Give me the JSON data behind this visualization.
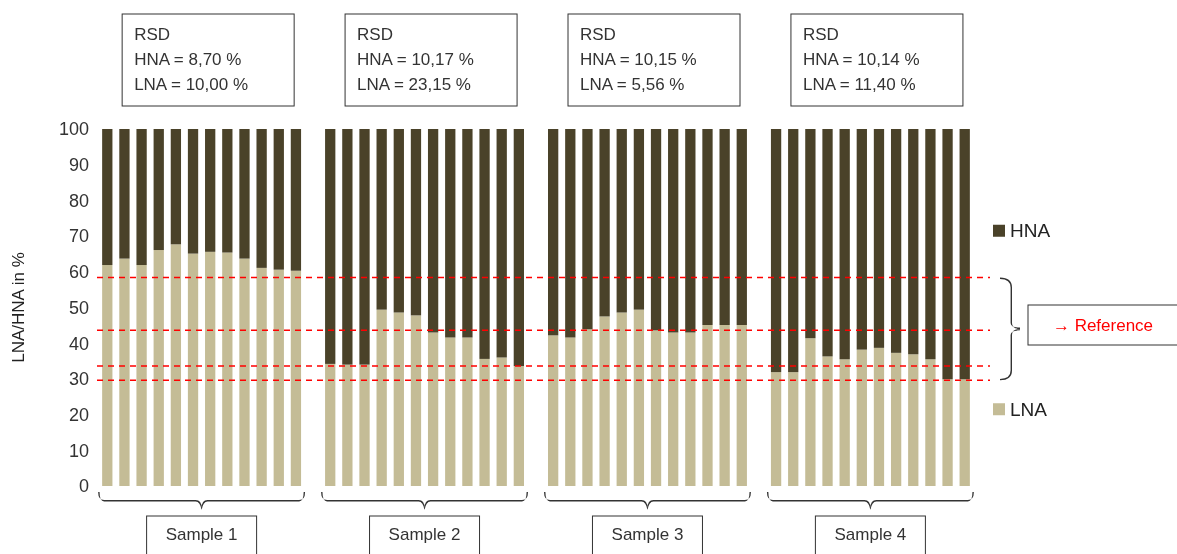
{
  "chart_data": {
    "type": "bar",
    "stacked": true,
    "ylabel": "LNA/HNA in %",
    "ylim": [
      0,
      100
    ],
    "yticks": [
      0,
      10,
      20,
      30,
      40,
      50,
      60,
      70,
      80,
      90,
      100
    ],
    "tick_labels": "y",
    "legend": "right",
    "grid": false,
    "categories": [
      null,
      null,
      null,
      null,
      null,
      null,
      null,
      null,
      null,
      null,
      null,
      null,
      null,
      null,
      null,
      null,
      null,
      null,
      null,
      null,
      null,
      null,
      null,
      null,
      null,
      null,
      null,
      null,
      null,
      null,
      null,
      null,
      null,
      null,
      null,
      null,
      null,
      null,
      null,
      null,
      null,
      null,
      null,
      null,
      null,
      null,
      null,
      null
    ],
    "series": [
      {
        "name": "LNA",
        "color": "#c4bc96",
        "values": [
          61.9,
          63.7,
          61.9,
          66.1,
          67.7,
          65.1,
          65.6,
          65.4,
          63.7,
          61.1,
          60.6,
          60.3,
          34.2,
          34.0,
          34.0,
          49.4,
          48.6,
          47.8,
          43.0,
          41.6,
          41.6,
          35.6,
          36.0,
          33.6,
          42.2,
          41.6,
          43.9,
          47.5,
          48.6,
          49.4,
          43.6,
          43.0,
          43.0,
          45.1,
          45.1,
          45.1,
          31.9,
          31.9,
          41.4,
          36.3,
          35.5,
          38.2,
          38.7,
          37.3,
          36.9,
          35.5,
          29.9,
          29.9
        ]
      },
      {
        "name": "HNA",
        "color": "#4a4229",
        "values": [
          38.1,
          36.3,
          38.1,
          33.9,
          32.3,
          34.9,
          34.4,
          34.6,
          36.3,
          38.9,
          39.4,
          39.7,
          65.8,
          66.0,
          66.0,
          50.6,
          51.4,
          52.2,
          57.0,
          58.4,
          58.4,
          64.4,
          64.0,
          66.4,
          57.8,
          58.4,
          56.1,
          52.5,
          51.4,
          50.6,
          56.4,
          57.0,
          57.0,
          54.9,
          54.9,
          54.9,
          68.1,
          68.1,
          58.6,
          63.7,
          64.5,
          61.8,
          61.3,
          62.7,
          63.1,
          64.5,
          70.1,
          70.1
        ]
      }
    ],
    "ref_lines": [
      {
        "axis": "y",
        "value": 58.4,
        "color": "#ff0000",
        "line_style": "dashed"
      },
      {
        "axis": "y",
        "value": 33.6,
        "color": "#ff0000",
        "line_style": "dashed"
      },
      {
        "axis": "y",
        "value": 43.6,
        "color": "#ff0000",
        "line_style": "dashed"
      },
      {
        "axis": "y",
        "value": 29.6,
        "color": "#ff0000",
        "line_style": "dashed"
      }
    ],
    "annotations": [
      "RSD\nHNA = 8,70 %\nLNA = 10,00 %",
      "RSD\nHNA = 10,17 %\nLNA = 23,15 %",
      "RSD\nHNA = 10,15 %\nLNA = 5,56 %",
      "RSD\nHNA = 10,14 %\nLNA = 11,40 %",
      "Sample 1",
      "Sample 2",
      "Sample 3",
      "Sample 4",
      "→ Reference"
    ]
  }
}
